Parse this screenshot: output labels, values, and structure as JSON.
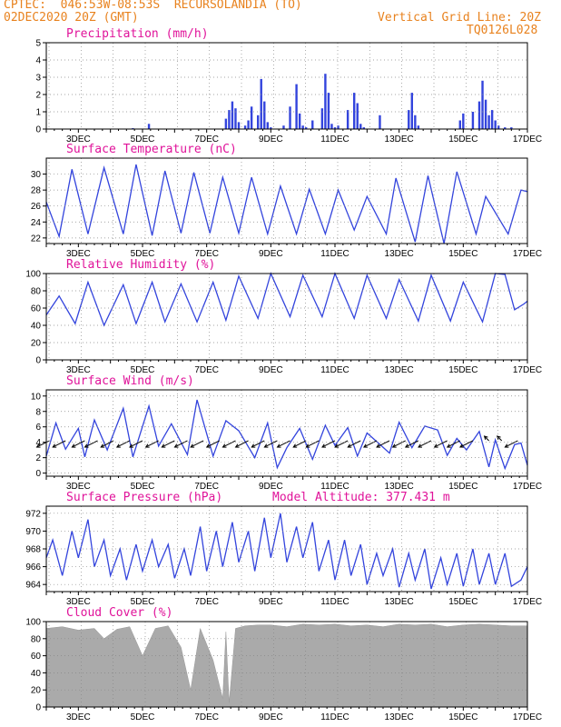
{
  "header": {
    "line1": "CPTEC:  046:53W-08:53S  RECURSOLANDIA (TO)",
    "line2_left": "02DEC2020 20Z (GMT)",
    "line2_right": "Vertical Grid Line: 20Z",
    "line3_right": "TQ0126L028"
  },
  "colors": {
    "series": "#3344dd",
    "title": "#e0139a",
    "header": "#e8821e",
    "cloud": "#aaaaaa"
  },
  "chart_data": [
    {
      "type": "bar",
      "title": "Precipitation (mm/h)",
      "xticks": [
        "3DEC",
        "5DEC",
        "7DEC",
        "9DEC",
        "11DEC",
        "13DEC",
        "15DEC",
        "17DEC"
      ],
      "ylim": [
        0,
        5
      ],
      "yticks": [
        0,
        1,
        2,
        3,
        4,
        5
      ],
      "x_day": [
        4.7,
        5.2,
        7.6,
        7.7,
        7.8,
        7.9,
        8.0,
        8.2,
        8.3,
        8.4,
        8.6,
        8.7,
        8.8,
        8.9,
        9.0,
        9.4,
        9.6,
        9.8,
        9.9,
        10.0,
        10.1,
        10.3,
        10.6,
        10.7,
        10.8,
        10.9,
        11.0,
        11.1,
        11.4,
        11.6,
        11.7,
        11.8,
        11.9,
        12.4,
        13.3,
        13.4,
        13.5,
        13.6,
        14.9,
        15.0,
        15.3,
        15.5,
        15.6,
        15.7,
        15.8,
        15.9,
        16.0,
        16.1,
        16.3,
        16.5
      ],
      "values": [
        0.05,
        0.3,
        0.6,
        1.1,
        1.6,
        1.2,
        0.4,
        0.2,
        0.5,
        1.3,
        0.8,
        2.9,
        1.6,
        0.4,
        0.1,
        0.2,
        1.3,
        2.6,
        0.9,
        0.2,
        0.1,
        0.5,
        1.2,
        3.2,
        2.1,
        0.3,
        0.1,
        0.2,
        1.1,
        2.1,
        1.5,
        0.3,
        0.1,
        0.8,
        1.1,
        2.1,
        0.8,
        0.2,
        0.5,
        0.9,
        1.0,
        1.6,
        2.8,
        1.7,
        0.8,
        1.1,
        0.5,
        0.2,
        0.1,
        0.1
      ],
      "grid": true
    },
    {
      "type": "line",
      "title": "Surface Temperature (nC)",
      "xticks": [
        "3DEC",
        "5DEC",
        "7DEC",
        "9DEC",
        "11DEC",
        "13DEC",
        "15DEC",
        "17DEC"
      ],
      "ylim": [
        21.3,
        32
      ],
      "yticks": [
        22,
        24,
        26,
        28,
        30
      ],
      "x_day": [
        2.0,
        2.4,
        2.8,
        3.3,
        3.8,
        4.4,
        4.8,
        5.3,
        5.7,
        6.2,
        6.6,
        7.1,
        7.5,
        8.0,
        8.4,
        8.9,
        9.3,
        9.8,
        10.2,
        10.7,
        11.1,
        11.6,
        12.0,
        12.6,
        12.9,
        13.5,
        13.9,
        14.4,
        14.8,
        15.4,
        15.7,
        16.4,
        16.8,
        17.0
      ],
      "values": [
        26.5,
        22.2,
        30.6,
        22.5,
        30.8,
        22.5,
        31.2,
        22.3,
        30.4,
        22.6,
        30.2,
        22.6,
        29.6,
        22.6,
        29.6,
        22.5,
        28.5,
        22.5,
        28.1,
        22.5,
        28.0,
        23.0,
        27.2,
        22.5,
        29.5,
        21.5,
        29.8,
        21.3,
        30.3,
        22.5,
        27.2,
        22.5,
        28.0,
        27.8
      ],
      "grid": true
    },
    {
      "type": "line",
      "title": "Relative Humidity (%)",
      "xticks": [
        "3DEC",
        "5DEC",
        "7DEC",
        "9DEC",
        "11DEC",
        "13DEC",
        "15DEC",
        "17DEC"
      ],
      "ylim": [
        0,
        100
      ],
      "yticks": [
        0,
        20,
        40,
        60,
        80,
        100
      ],
      "x_day": [
        2.0,
        2.4,
        2.9,
        3.3,
        3.8,
        4.4,
        4.8,
        5.3,
        5.7,
        6.2,
        6.7,
        7.2,
        7.6,
        8.0,
        8.6,
        9.0,
        9.6,
        10.0,
        10.6,
        11.0,
        11.6,
        12.0,
        12.6,
        13.0,
        13.6,
        14.0,
        14.6,
        15.0,
        15.6,
        16.0,
        16.3,
        16.6,
        16.9,
        17.0
      ],
      "values": [
        52,
        74,
        42,
        90,
        40,
        87,
        42,
        90,
        44,
        88,
        44,
        90,
        46,
        97,
        48,
        100,
        50,
        98,
        50,
        100,
        48,
        98,
        48,
        93,
        45,
        98,
        45,
        90,
        44,
        100,
        99,
        58,
        65,
        68
      ],
      "grid": true
    },
    {
      "type": "line",
      "title": "Surface Wind (m/s)",
      "xticks": [
        "3DEC",
        "5DEC",
        "7DEC",
        "9DEC",
        "11DEC",
        "13DEC",
        "15DEC",
        "17DEC"
      ],
      "ylim": [
        -0.4,
        10.8
      ],
      "yticks": [
        0,
        2,
        4,
        6,
        8,
        10
      ],
      "x_day": [
        2.0,
        2.3,
        2.6,
        3.0,
        3.2,
        3.5,
        3.9,
        4.4,
        4.7,
        5.2,
        5.5,
        5.9,
        6.4,
        6.7,
        7.2,
        7.6,
        8.0,
        8.5,
        8.9,
        9.2,
        9.5,
        9.9,
        10.3,
        10.7,
        11.0,
        11.4,
        11.7,
        12.0,
        12.3,
        12.7,
        13.0,
        13.4,
        13.8,
        14.2,
        14.5,
        14.8,
        15.1,
        15.5,
        15.8,
        16.0,
        16.3,
        16.6,
        16.8,
        17.0
      ],
      "values": [
        2.2,
        6.5,
        3.1,
        5.8,
        2.1,
        6.9,
        3.0,
        8.4,
        2.1,
        8.7,
        3.5,
        6.4,
        2.4,
        9.5,
        2.2,
        6.8,
        5.5,
        2.0,
        6.5,
        0.7,
        3.3,
        5.8,
        1.8,
        6.2,
        3.6,
        5.9,
        2.2,
        5.2,
        4.1,
        2.6,
        6.6,
        3.3,
        6.1,
        5.6,
        2.3,
        4.5,
        3.0,
        5.4,
        0.8,
        4.3,
        0.6,
        3.7,
        3.9,
        1.0
      ],
      "wind_arrows": [
        {
          "x_day": 2.1,
          "dir": "sw"
        },
        {
          "x_day": 2.6,
          "dir": "sw"
        },
        {
          "x_day": 3.2,
          "dir": "sw"
        },
        {
          "x_day": 3.6,
          "dir": "sw"
        },
        {
          "x_day": 4.1,
          "dir": "sw"
        },
        {
          "x_day": 4.6,
          "dir": "sw"
        },
        {
          "x_day": 5.0,
          "dir": "sw"
        },
        {
          "x_day": 5.5,
          "dir": "sw"
        },
        {
          "x_day": 6.0,
          "dir": "sw"
        },
        {
          "x_day": 6.4,
          "dir": "sw"
        },
        {
          "x_day": 6.9,
          "dir": "sw"
        },
        {
          "x_day": 7.4,
          "dir": "sw"
        },
        {
          "x_day": 7.9,
          "dir": "sw"
        },
        {
          "x_day": 8.3,
          "dir": "sw"
        },
        {
          "x_day": 8.8,
          "dir": "sw"
        },
        {
          "x_day": 9.2,
          "dir": "sw"
        },
        {
          "x_day": 9.6,
          "dir": "sw"
        },
        {
          "x_day": 10.1,
          "dir": "sw"
        },
        {
          "x_day": 10.5,
          "dir": "sw"
        },
        {
          "x_day": 11.0,
          "dir": "sw"
        },
        {
          "x_day": 11.4,
          "dir": "sw"
        },
        {
          "x_day": 11.8,
          "dir": "sw"
        },
        {
          "x_day": 12.3,
          "dir": "sw"
        },
        {
          "x_day": 12.7,
          "dir": "sw"
        },
        {
          "x_day": 13.2,
          "dir": "sw"
        },
        {
          "x_day": 13.6,
          "dir": "sw"
        },
        {
          "x_day": 14.0,
          "dir": "sw"
        },
        {
          "x_day": 14.5,
          "dir": "sw"
        },
        {
          "x_day": 14.9,
          "dir": "sw"
        },
        {
          "x_day": 15.3,
          "dir": "sw"
        },
        {
          "x_day": 15.8,
          "dir": "nw"
        },
        {
          "x_day": 16.2,
          "dir": "nw"
        },
        {
          "x_day": 16.7,
          "dir": "sw"
        }
      ],
      "grid": true
    },
    {
      "type": "line",
      "title": "Surface Pressure (hPa)",
      "annotation": "Model Altitude: 377.431 m",
      "xticks": [
        "3DEC",
        "5DEC",
        "7DEC",
        "9DEC",
        "11DEC",
        "13DEC",
        "15DEC",
        "17DEC"
      ],
      "ylim": [
        963.2,
        972.8
      ],
      "yticks": [
        964,
        966,
        968,
        970,
        972
      ],
      "x_day": [
        2.0,
        2.2,
        2.5,
        2.8,
        3.0,
        3.3,
        3.5,
        3.8,
        4.0,
        4.3,
        4.5,
        4.8,
        5.0,
        5.3,
        5.5,
        5.8,
        6.0,
        6.3,
        6.5,
        6.8,
        7.0,
        7.3,
        7.5,
        7.8,
        8.0,
        8.3,
        8.5,
        8.8,
        9.0,
        9.3,
        9.5,
        9.8,
        10.0,
        10.3,
        10.5,
        10.8,
        11.0,
        11.3,
        11.5,
        11.8,
        12.0,
        12.3,
        12.5,
        12.8,
        13.0,
        13.3,
        13.5,
        13.8,
        14.0,
        14.3,
        14.5,
        14.8,
        15.0,
        15.3,
        15.5,
        15.8,
        16.0,
        16.3,
        16.5,
        16.8,
        17.0
      ],
      "values": [
        967.0,
        969.0,
        965.0,
        970.0,
        967.0,
        971.3,
        966.0,
        969.0,
        965.0,
        968.0,
        964.5,
        968.5,
        965.5,
        969.0,
        966.0,
        968.5,
        964.7,
        968.0,
        965.0,
        970.5,
        965.5,
        970.0,
        966.0,
        971.0,
        966.5,
        970.0,
        965.5,
        971.5,
        967.0,
        972.0,
        966.5,
        970.5,
        967.0,
        971.0,
        965.5,
        969.0,
        964.5,
        969.0,
        965.0,
        968.5,
        964.0,
        967.5,
        965.0,
        968.0,
        963.7,
        967.5,
        964.5,
        968.0,
        963.5,
        967.0,
        964.0,
        967.5,
        963.8,
        968.0,
        964.0,
        967.5,
        964.0,
        967.5,
        963.8,
        964.5,
        966.0
      ],
      "grid": true
    },
    {
      "type": "area",
      "title": "Cloud Cover (%)",
      "xticks": [
        "3DEC",
        "5DEC",
        "7DEC",
        "9DEC",
        "11DEC",
        "13DEC",
        "15DEC",
        "17DEC"
      ],
      "ylim": [
        0,
        100
      ],
      "yticks": [
        0,
        20,
        40,
        60,
        80,
        100
      ],
      "x_day": [
        2.0,
        2.5,
        3.0,
        3.5,
        3.8,
        4.2,
        4.6,
        5.0,
        5.4,
        5.8,
        6.2,
        6.5,
        6.8,
        7.2,
        7.5,
        7.6,
        7.7,
        7.9,
        8.2,
        8.6,
        9.0,
        9.5,
        10.0,
        10.5,
        11.0,
        11.5,
        12.0,
        12.5,
        13.0,
        13.5,
        14.0,
        14.5,
        15.0,
        15.5,
        16.0,
        16.5,
        17.0
      ],
      "values": [
        92,
        94,
        90,
        92,
        80,
        91,
        94,
        60,
        92,
        95,
        70,
        20,
        92,
        55,
        10,
        88,
        5,
        92,
        95,
        96,
        96,
        94,
        97,
        96,
        97,
        95,
        96,
        94,
        97,
        96,
        97,
        94,
        96,
        97,
        96,
        95,
        95
      ],
      "grid": true
    }
  ]
}
